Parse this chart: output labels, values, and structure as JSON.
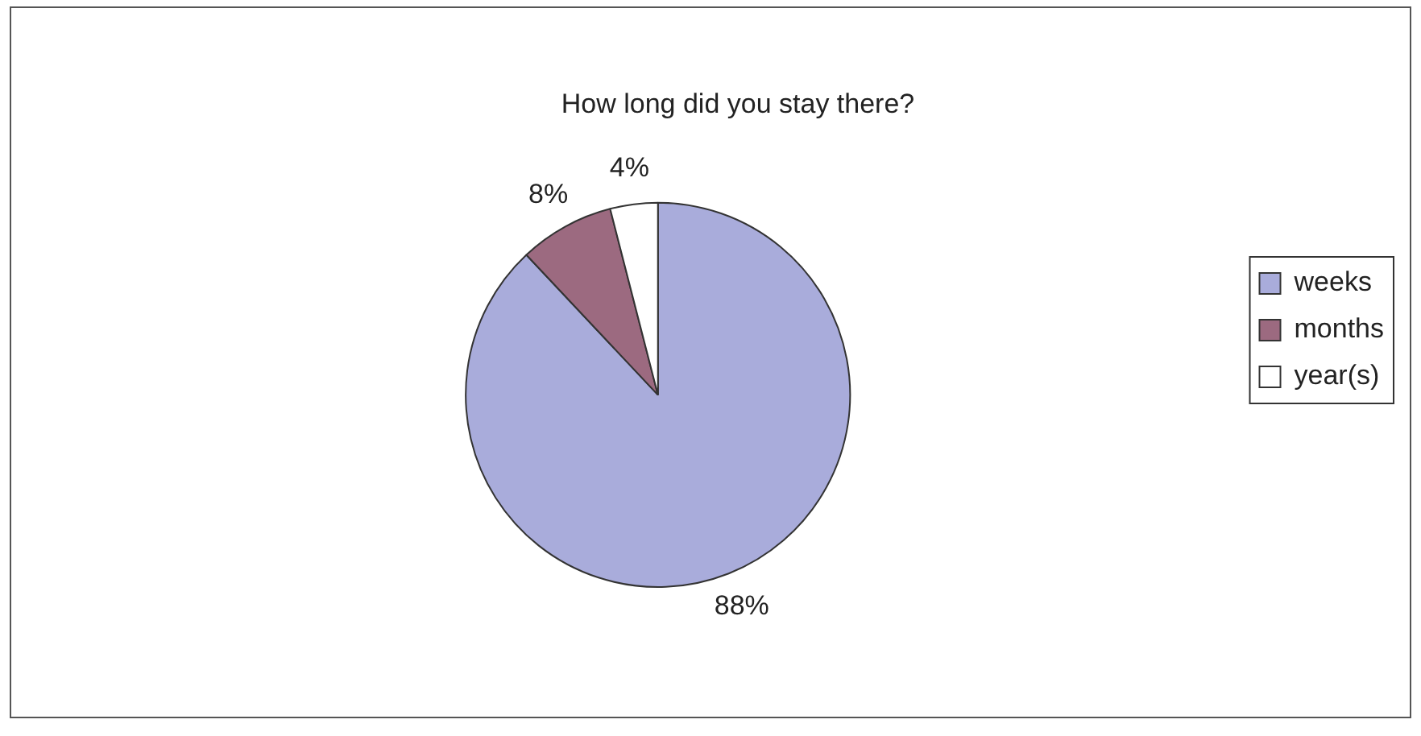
{
  "chart_data": {
    "type": "pie",
    "title": "How long did you stay there?",
    "categories": [
      "weeks",
      "months",
      "year(s)"
    ],
    "values": [
      88,
      8,
      4
    ],
    "colors": [
      "#a9acdb",
      "#9c6a80",
      "#ffffff"
    ],
    "value_labels": [
      "88%",
      "8%",
      "4%"
    ],
    "legend": "right"
  }
}
